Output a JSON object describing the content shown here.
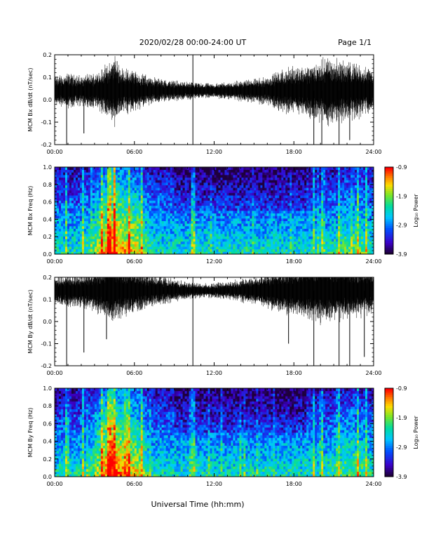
{
  "header": {
    "title": "2020/02/28  00:00-24:00 UT",
    "page": "Page 1/1"
  },
  "footer": {
    "xlabel": "Universal Time (hh:mm)"
  },
  "colorbar": {
    "label": "Log₁₀ Power",
    "ticks": [
      "-0.9",
      "-1.9",
      "-2.9",
      "-3.9"
    ]
  },
  "chart_data": [
    {
      "type": "line",
      "ylabel": "MCM Bx dB/dt (nT/sec)",
      "xlim": [
        0,
        24
      ],
      "ylim": [
        -0.2,
        0.2
      ],
      "xticks": [
        "00:00",
        "06:00",
        "12:00",
        "18:00",
        "24:00"
      ],
      "yticks": [
        "0.2",
        "0.1",
        "0.0",
        "-0.1",
        "-0.2"
      ],
      "baseline": 0.04,
      "x": [
        0,
        1,
        2,
        3,
        4,
        4.5,
        5,
        6,
        7,
        8,
        9,
        10,
        11,
        12,
        13,
        14,
        15,
        16,
        17,
        18,
        19,
        20,
        20.5,
        21,
        22,
        23,
        24
      ],
      "amplitude": [
        0.05,
        0.06,
        0.05,
        0.06,
        0.09,
        0.12,
        0.08,
        0.07,
        0.05,
        0.04,
        0.035,
        0.03,
        0.025,
        0.025,
        0.03,
        0.035,
        0.04,
        0.05,
        0.07,
        0.08,
        0.09,
        0.1,
        0.12,
        0.11,
        0.1,
        0.09,
        0.08
      ],
      "spikes": [
        [
          0.9,
          -0.22
        ],
        [
          2.2,
          -0.15
        ],
        [
          10.4,
          0.2
        ],
        [
          10.4,
          -0.22
        ],
        [
          19.5,
          -0.22
        ],
        [
          20.1,
          -0.22
        ],
        [
          21.4,
          -0.22
        ],
        [
          22.2,
          -0.18
        ]
      ]
    },
    {
      "type": "heatmap",
      "ylabel": "MCM Bx Freq (Hz)",
      "xlim": [
        0,
        24
      ],
      "ylim": [
        0,
        1.0
      ],
      "xticks": [
        "00:00",
        "06:00",
        "12:00",
        "18:00",
        "24:00"
      ],
      "yticks": [
        "1.0",
        "0.8",
        "0.6",
        "0.4",
        "0.2",
        "0.0"
      ],
      "zlim": [
        -3.9,
        -0.9
      ],
      "zlabel": "Log₁₀ Power",
      "bright_times": [
        0.9,
        2.1,
        3.6,
        4.1,
        4.5,
        5.6,
        6.5,
        10.4,
        19.5,
        20.1,
        21.4,
        22.8,
        23.4
      ]
    },
    {
      "type": "line",
      "ylabel": "MCM By dB/dt (nT/sec)",
      "xlim": [
        0,
        24
      ],
      "ylim": [
        -0.2,
        0.2
      ],
      "xticks": [
        "00:00",
        "06:00",
        "12:00",
        "18:00",
        "24:00"
      ],
      "yticks": [
        "0.2",
        "0.1",
        "0.0",
        "-0.1",
        "-0.2"
      ],
      "baseline": 0.14,
      "x": [
        0,
        1,
        2,
        3,
        4,
        4.5,
        5,
        6,
        7,
        8,
        9,
        10,
        11,
        12,
        13,
        14,
        15,
        16,
        17,
        18,
        19,
        20,
        20.5,
        21,
        22,
        23,
        24
      ],
      "amplitude": [
        0.05,
        0.06,
        0.06,
        0.07,
        0.1,
        0.12,
        0.09,
        0.08,
        0.06,
        0.05,
        0.04,
        0.03,
        0.025,
        0.025,
        0.03,
        0.04,
        0.05,
        0.06,
        0.08,
        0.09,
        0.1,
        0.11,
        0.12,
        0.11,
        0.1,
        0.09,
        0.08
      ],
      "spikes": [
        [
          0.9,
          -0.22
        ],
        [
          2.2,
          -0.14
        ],
        [
          3.9,
          -0.08
        ],
        [
          10.4,
          0.2
        ],
        [
          10.4,
          -0.22
        ],
        [
          17.6,
          -0.1
        ],
        [
          19.5,
          -0.22
        ],
        [
          21.4,
          -0.22
        ],
        [
          22.2,
          -0.22
        ],
        [
          23.3,
          -0.16
        ]
      ]
    },
    {
      "type": "heatmap",
      "ylabel": "MCM By Freq (Hz)",
      "xlim": [
        0,
        24
      ],
      "ylim": [
        0,
        1.0
      ],
      "xticks": [
        "00:00",
        "06:00",
        "12:00",
        "18:00",
        "24:00"
      ],
      "yticks": [
        "1.0",
        "0.8",
        "0.6",
        "0.4",
        "0.2",
        "0.0"
      ],
      "zlim": [
        -3.9,
        -0.9
      ],
      "zlabel": "Log₁₀ Power",
      "bright_times": [
        0.9,
        2.1,
        3.6,
        4.1,
        4.5,
        5.6,
        6.5,
        10.4,
        19.5,
        20.1,
        21.4,
        22.8,
        23.4
      ]
    }
  ]
}
